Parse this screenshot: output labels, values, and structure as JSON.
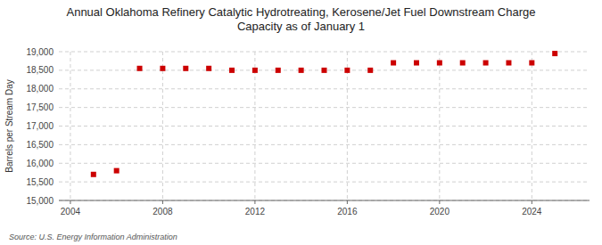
{
  "chart_data": {
    "type": "scatter",
    "title": "Annual Oklahoma Refinery Catalytic Hydrotreating, Kerosene/Jet Fuel Downstream Charge\nCapacity as of January 1",
    "y_label": "Barrels per Stream Day",
    "annotations": [
      "Source: U.S. Energy Information Administration"
    ],
    "x": [
      2005,
      2006,
      2007,
      2008,
      2009,
      2010,
      2011,
      2012,
      2013,
      2014,
      2015,
      2016,
      2017,
      2018,
      2019,
      2020,
      2021,
      2022,
      2023,
      2024,
      2025
    ],
    "values": [
      15700,
      15800,
      18550,
      18550,
      18550,
      18550,
      18500,
      18500,
      18500,
      18500,
      18500,
      18500,
      18500,
      18700,
      18700,
      18700,
      18700,
      18700,
      18700,
      18700,
      18950
    ],
    "color": "#cc0000",
    "marker": "square",
    "xlim": [
      2003.5,
      2026.5
    ],
    "xticks": [
      2004,
      2008,
      2012,
      2016,
      2020,
      2024
    ],
    "ylim": [
      15000,
      19000
    ],
    "yticks": [
      {
        "value": 15000,
        "label": "15,000"
      },
      {
        "value": 15500,
        "label": "15,500"
      },
      {
        "value": 16000,
        "label": "16,000"
      },
      {
        "value": 16500,
        "label": "16,500"
      },
      {
        "value": 17000,
        "label": "17,000"
      },
      {
        "value": 17500,
        "label": "17,500"
      },
      {
        "value": 18000,
        "label": "18,000"
      },
      {
        "value": 18500,
        "label": "18,500"
      },
      {
        "value": 19000,
        "label": "19,000"
      }
    ],
    "grid": true
  }
}
